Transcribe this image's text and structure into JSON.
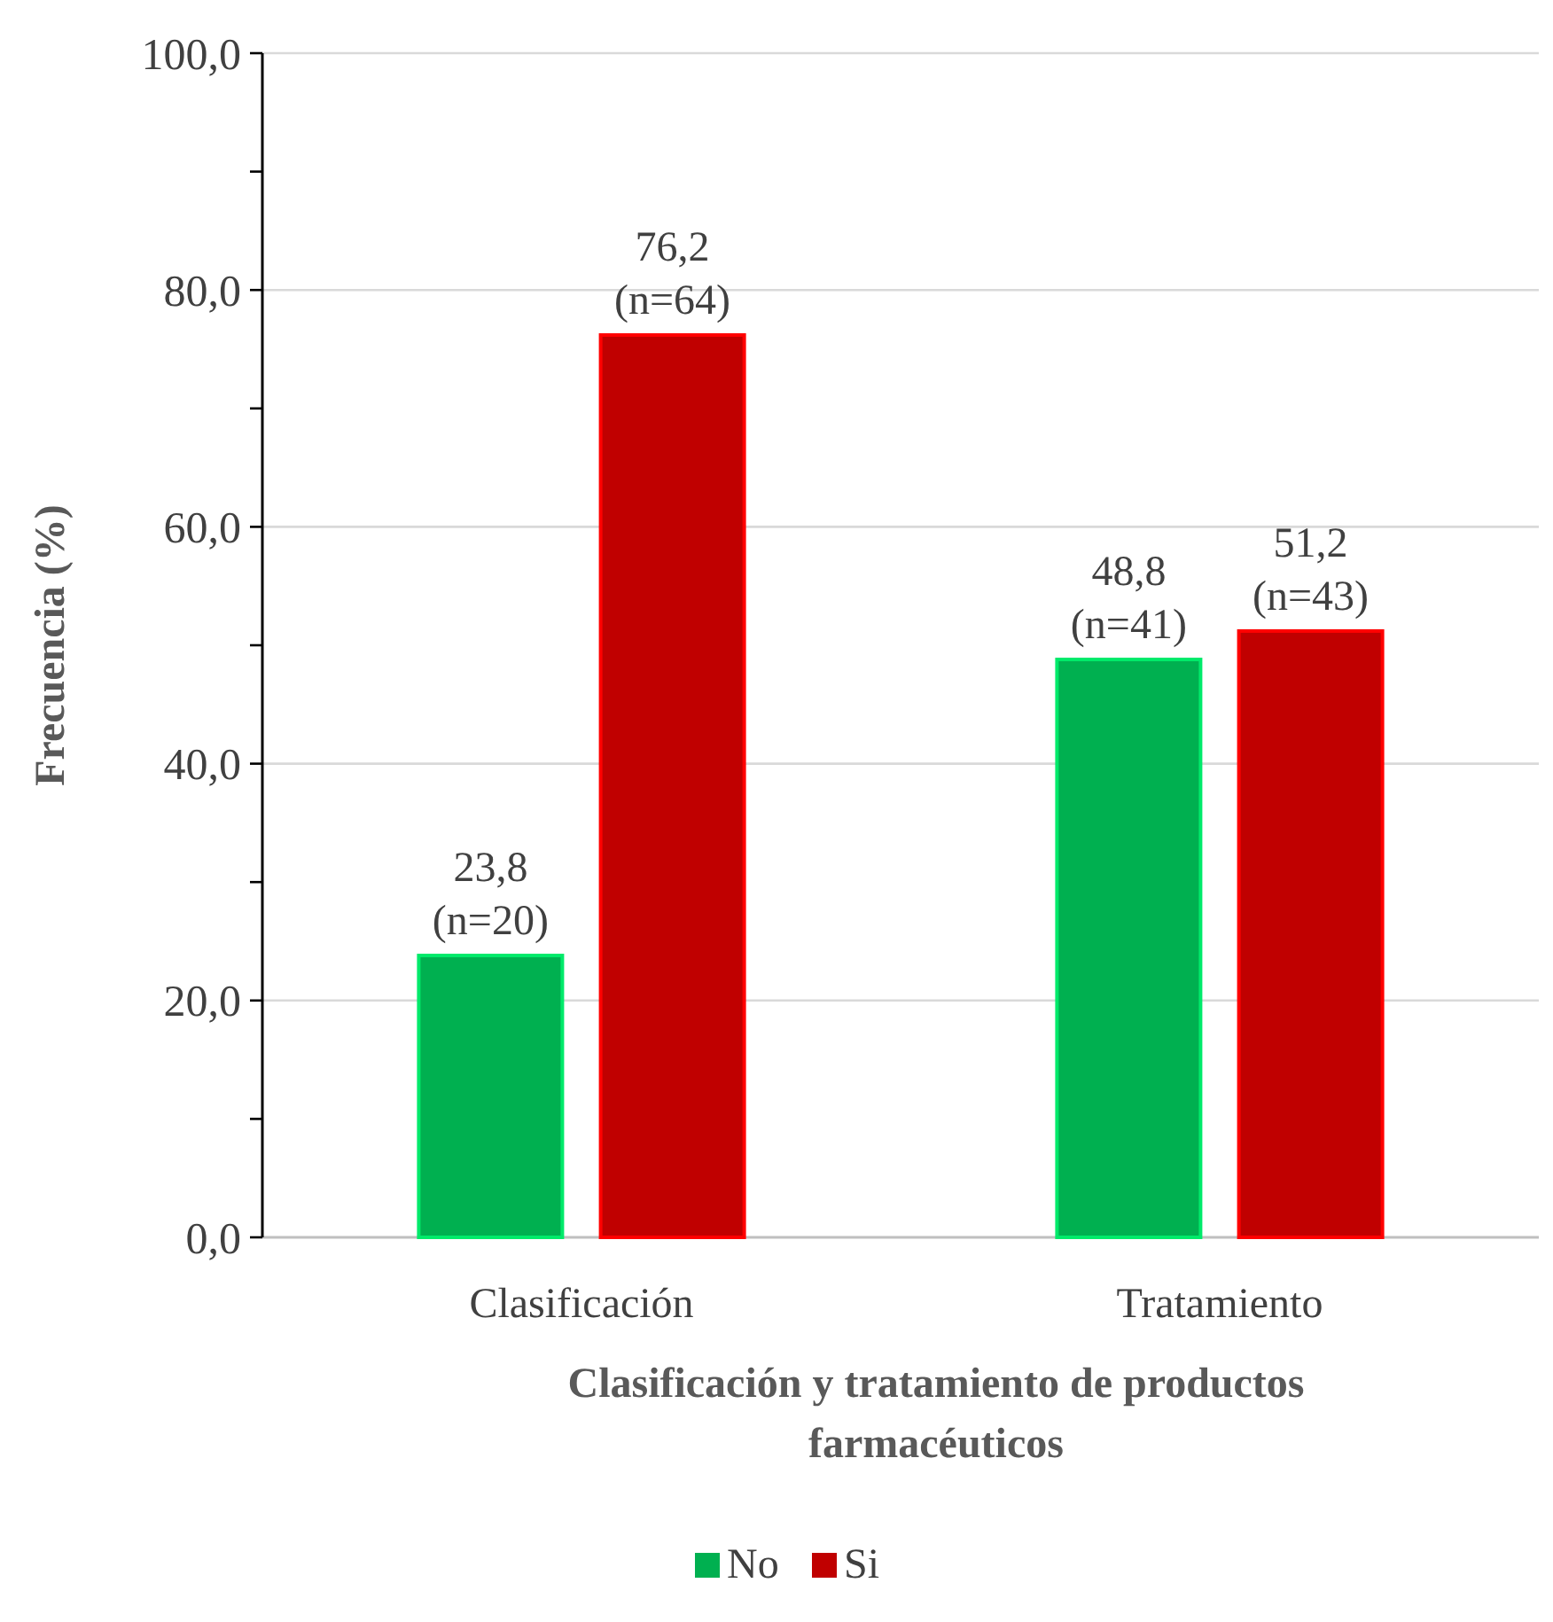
{
  "chart_data": {
    "type": "bar",
    "xlabel": "Clasificación y tratamiento de productos farmacéuticos",
    "ylabel": "Frecuencia (%)",
    "categories": [
      "Clasificación",
      "Tratamiento"
    ],
    "series": [
      {
        "name": "No",
        "color": "#00b050",
        "values": [
          23.8,
          48.8
        ],
        "value_labels": [
          "23,8\n(n=20)",
          "48,8\n(n=41)"
        ]
      },
      {
        "name": "Si",
        "color": "#c00000",
        "values": [
          76.2,
          51.2
        ],
        "value_labels": [
          "76,2\n(n=64)",
          "51,2\n(n=43)"
        ]
      }
    ],
    "ylim": [
      0,
      100
    ],
    "yticks": [
      {
        "value": 0,
        "label": "0,0"
      },
      {
        "value": 10,
        "label": null
      },
      {
        "value": 20,
        "label": "20,0"
      },
      {
        "value": 30,
        "label": null
      },
      {
        "value": 40,
        "label": "40,0"
      },
      {
        "value": 50,
        "label": null
      },
      {
        "value": 60,
        "label": "60,0"
      },
      {
        "value": 70,
        "label": null
      },
      {
        "value": 80,
        "label": "80,0"
      },
      {
        "value": 90,
        "label": null
      },
      {
        "value": 100,
        "label": "100,0"
      }
    ],
    "grid": "y",
    "legend": "bottom"
  }
}
